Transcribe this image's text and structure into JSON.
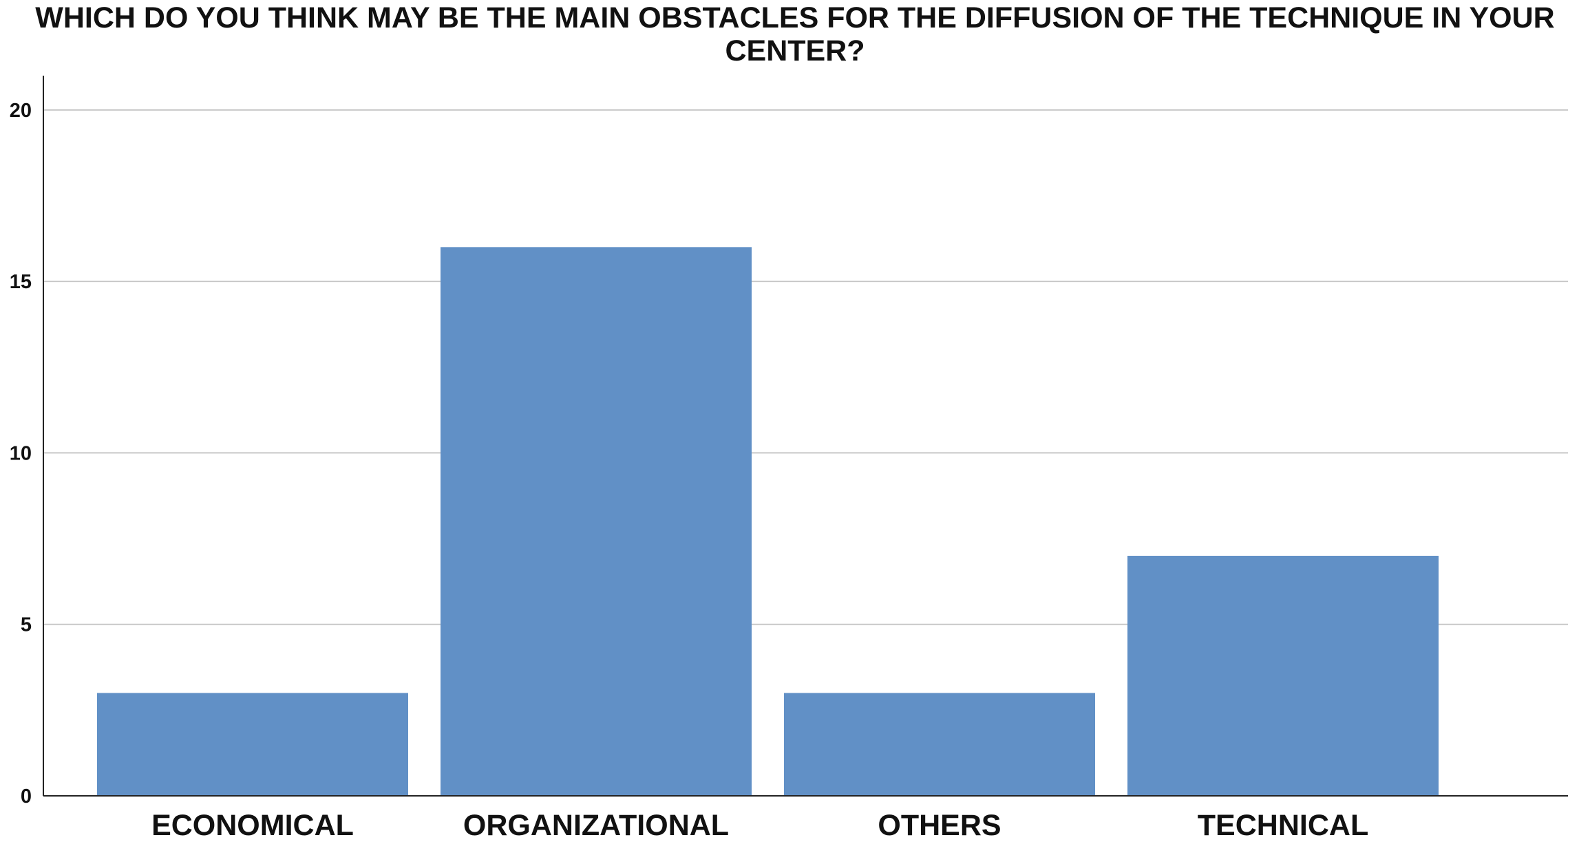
{
  "chart_data": {
    "type": "bar",
    "title": "WHICH DO YOU THINK MAY BE THE MAIN OBSTACLES FOR THE DIFFUSION OF THE TECHNIQUE IN YOUR CENTER?",
    "categories": [
      "ECONOMICAL",
      "ORGANIZATIONAL",
      "OTHERS",
      "TECHNICAL"
    ],
    "values": [
      3,
      16,
      3,
      7
    ],
    "xlabel": "",
    "ylabel": "",
    "ylim": [
      0,
      21
    ],
    "yticks": [
      0,
      5,
      10,
      15,
      20
    ],
    "grid": true,
    "legend": "none",
    "bar_color": "#6190c6",
    "grid_color": "#c8c8c8",
    "axis_color": "#222222"
  }
}
